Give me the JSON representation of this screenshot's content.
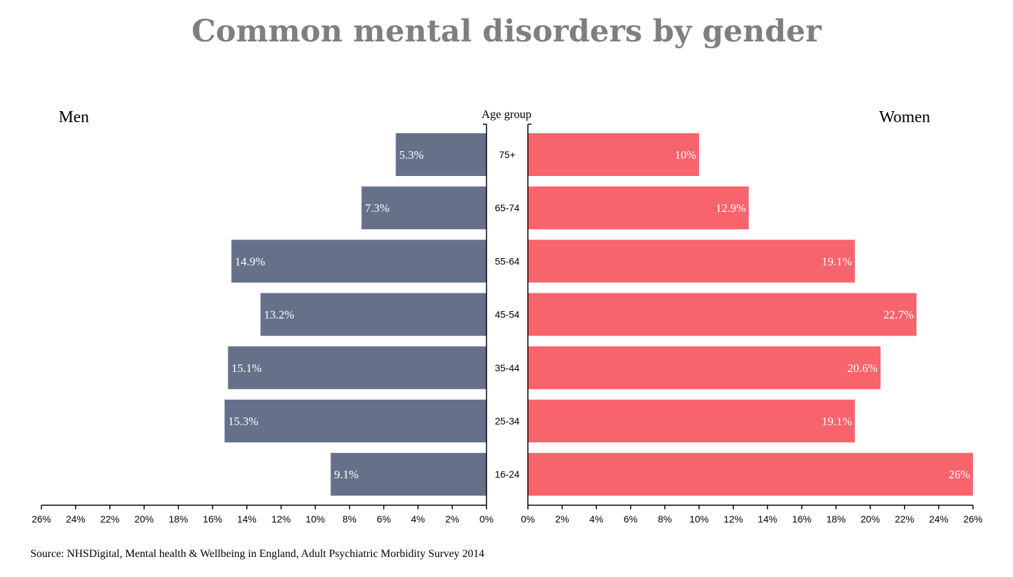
{
  "chart_data": {
    "type": "bar",
    "title": "Common mental disorders by gender",
    "center_label": "Age group",
    "categories": [
      "75+",
      "65-74",
      "55-64",
      "45-54",
      "35-44",
      "25-34",
      "16-24"
    ],
    "series": [
      {
        "name": "Men",
        "side": "left",
        "color": "#667189",
        "values": [
          5.3,
          7.3,
          14.9,
          13.2,
          15.1,
          15.3,
          9.1
        ],
        "labels": [
          "5.3%",
          "7.3%",
          "14.9%",
          "13.2%",
          "15.1%",
          "15.3%",
          "9.1%"
        ]
      },
      {
        "name": "Women",
        "side": "right",
        "color": "#f8646c",
        "values": [
          10,
          12.9,
          19.1,
          22.7,
          20.6,
          19.1,
          26
        ],
        "labels": [
          "10%",
          "12.9%",
          "19.1%",
          "22.7%",
          "20.6%",
          "19.1%",
          "26%"
        ]
      }
    ],
    "xlim": [
      0,
      26
    ],
    "ticks": [
      0,
      2,
      4,
      6,
      8,
      10,
      12,
      14,
      16,
      18,
      20,
      22,
      24,
      26
    ],
    "tick_labels": [
      "0%",
      "2%",
      "4%",
      "6%",
      "8%",
      "10%",
      "12%",
      "14%",
      "16%",
      "18%",
      "20%",
      "22%",
      "24%",
      "26%"
    ],
    "grid": false,
    "source": "Source: NHSDigital, Mental health & Wellbeing in England, Adult Psychiatric Morbidity Survey 2014"
  }
}
